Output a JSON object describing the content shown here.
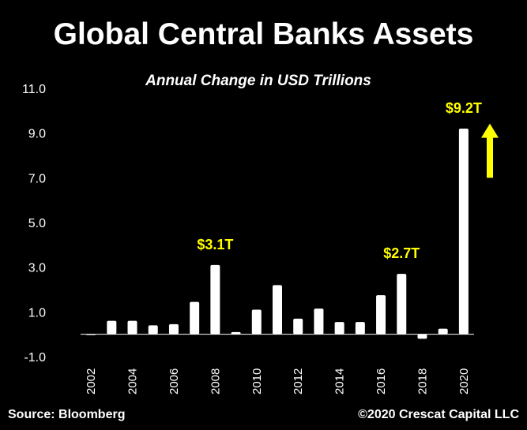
{
  "chart_data": {
    "type": "bar",
    "title": "Global Central Banks Assets",
    "subtitle": "Annual Change in USD Trillions",
    "categories": [
      "2002",
      "2003",
      "2004",
      "2005",
      "2006",
      "2007",
      "2008",
      "2009",
      "2010",
      "2011",
      "2012",
      "2013",
      "2014",
      "2015",
      "2016",
      "2017",
      "2018",
      "2019",
      "2020"
    ],
    "values": [
      0.0,
      0.6,
      0.6,
      0.4,
      0.45,
      1.45,
      3.1,
      0.1,
      1.1,
      2.2,
      0.7,
      1.15,
      0.55,
      0.55,
      1.75,
      2.7,
      -0.2,
      0.25,
      9.2
    ],
    "x_tick_labels": [
      "2002",
      "2004",
      "2006",
      "2008",
      "2010",
      "2012",
      "2014",
      "2016",
      "2018",
      "2020"
    ],
    "y_tick_labels": [
      "11.0",
      "9.0",
      "7.0",
      "5.0",
      "3.0",
      "1.0",
      "-1.0"
    ],
    "ylim": [
      -1.0,
      11.0
    ],
    "grid": false,
    "bar_color": "#ffffff",
    "annotation_color": "#ffff00",
    "annotations": [
      {
        "text": "$3.1T",
        "category": "2008",
        "value": 3.1
      },
      {
        "text": "$2.7T",
        "category": "2017",
        "value": 2.7
      },
      {
        "text": "$9.2T",
        "category": "2020",
        "value": 9.2
      }
    ],
    "arrow": {
      "direction": "up",
      "color": "#ffff00",
      "from_value": 7.0,
      "to_value": 9.0
    }
  },
  "footer": {
    "source": "Source: Bloomberg",
    "copyright": "©2020 Crescat Capital LLC"
  }
}
